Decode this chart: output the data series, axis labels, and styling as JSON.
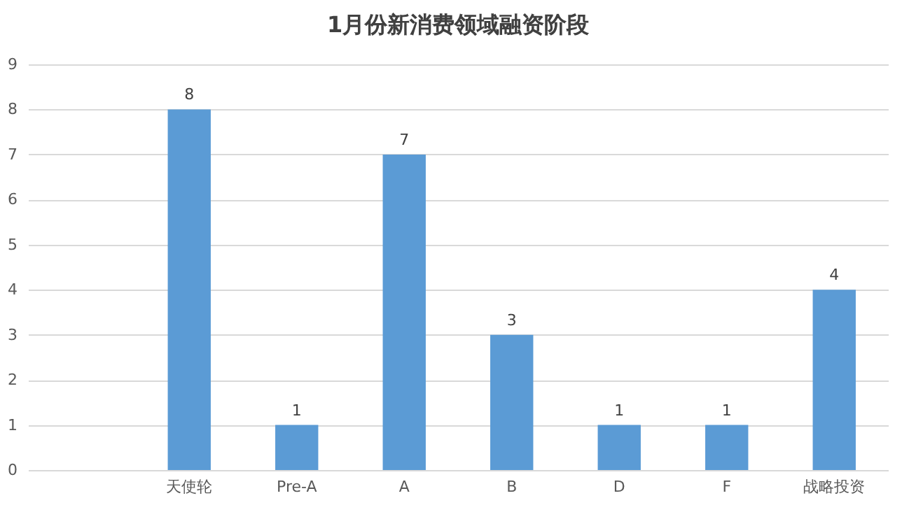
{
  "chart_data": {
    "type": "bar",
    "title": "1月份新消费领域融资阶段",
    "categories": [
      null,
      "天使轮",
      "Pre-A",
      "A",
      "B",
      "D",
      "F",
      "战略投资"
    ],
    "values": [
      null,
      8,
      1,
      7,
      3,
      1,
      1,
      4
    ],
    "color": "#5b9bd5",
    "ylim": [
      0,
      9
    ],
    "yticks": [
      0,
      1,
      2,
      3,
      4,
      5,
      6,
      7,
      8,
      9
    ],
    "grid": "y",
    "data_labels": true
  }
}
